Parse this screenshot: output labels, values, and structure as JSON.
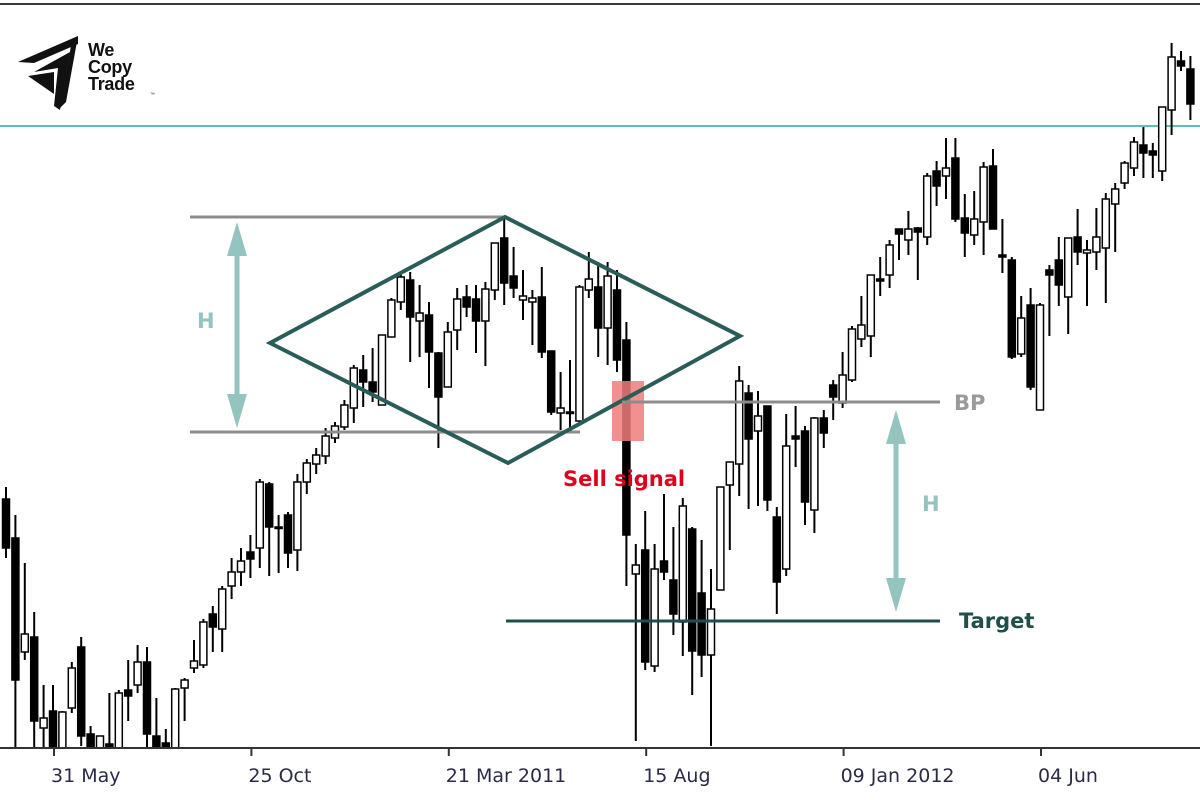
{
  "brand": {
    "line1": "We",
    "line2": "Copy",
    "line3": "Trade",
    "tm": "™"
  },
  "annotations": {
    "height_label_left": "H",
    "height_label_right": "H",
    "breakout_label": "BP",
    "sell_label": "Sell signal",
    "target_label": "Target"
  },
  "colors": {
    "pattern": "#2a5d58",
    "resistance": "#5fbfb5",
    "range_lines": "#8c8c8c",
    "height_arrow": "#93c4bf",
    "sell_text": "#e0001b",
    "sell_zone": "#f07b7b",
    "target": "#1f4f4b",
    "bull_body": "#ffffff",
    "bear_body": "#000000"
  },
  "chart_data": {
    "type": "candlestick",
    "title": "",
    "xlabel": "",
    "ylabel": "",
    "grid": false,
    "y_axis_labels_shown": false,
    "ylim": [
      252,
      1000
    ],
    "x_ticks": [
      {
        "label": "31 May",
        "date": "2010-05-31"
      },
      {
        "label": "25 Oct",
        "date": "2010-10-25"
      },
      {
        "label": "21 Mar 2011",
        "date": "2011-03-21"
      },
      {
        "label": "15 Aug",
        "date": "2011-08-15"
      },
      {
        "label": "09 Jan 2012",
        "date": "2012-01-09"
      },
      {
        "label": "04 Jun",
        "date": "2012-06-04"
      }
    ],
    "candle_fields": [
      "date",
      "open",
      "high",
      "low",
      "close"
    ],
    "candles": [
      [
        "2010-04-26",
        501,
        513,
        442,
        452
      ],
      [
        "2010-05-03",
        462,
        485,
        251,
        320
      ],
      [
        "2010-05-10",
        348,
        437,
        340,
        366
      ],
      [
        "2010-05-17",
        363,
        388,
        251,
        279
      ],
      [
        "2010-05-24",
        272,
        315,
        251,
        282
      ],
      [
        "2010-05-31",
        289,
        315,
        246,
        251
      ],
      [
        "2010-06-07",
        251,
        289,
        251,
        288
      ],
      [
        "2010-06-14",
        292,
        338,
        287,
        332
      ],
      [
        "2010-06-21",
        353,
        363,
        254,
        264
      ],
      [
        "2010-06-28",
        266,
        274,
        251,
        251
      ],
      [
        "2010-07-05",
        251,
        264,
        251,
        264
      ],
      [
        "2010-07-12",
        256,
        307,
        251,
        251
      ],
      [
        "2010-07-19",
        251,
        310,
        251,
        307
      ],
      [
        "2010-07-26",
        310,
        340,
        279,
        304
      ],
      [
        "2010-08-02",
        315,
        355,
        307,
        338
      ],
      [
        "2010-08-09",
        338,
        353,
        251,
        266
      ],
      [
        "2010-08-16",
        264,
        302,
        251,
        251
      ],
      [
        "2010-08-23",
        257,
        271,
        251,
        251
      ],
      [
        "2010-08-30",
        251,
        312,
        251,
        311
      ],
      [
        "2010-09-06",
        312,
        322,
        279,
        320
      ],
      [
        "2010-09-13",
        332,
        360,
        327,
        339
      ],
      [
        "2010-09-20",
        335,
        381,
        332,
        378
      ],
      [
        "2010-09-27",
        386,
        394,
        348,
        373
      ],
      [
        "2010-10-04",
        371,
        414,
        348,
        411
      ],
      [
        "2010-10-11",
        414,
        442,
        401,
        428
      ],
      [
        "2010-10-18",
        428,
        452,
        414,
        439
      ],
      [
        "2010-10-25",
        448,
        465,
        422,
        441
      ],
      [
        "2010-11-01",
        452,
        521,
        432,
        518
      ],
      [
        "2010-11-08",
        516,
        518,
        424,
        473
      ],
      [
        "2010-11-15",
        473,
        485,
        427,
        472
      ],
      [
        "2010-11-22",
        485,
        488,
        432,
        447
      ],
      [
        "2010-11-29",
        450,
        526,
        429,
        518
      ],
      [
        "2010-12-06",
        518,
        541,
        506,
        537
      ],
      [
        "2010-12-13",
        536,
        552,
        526,
        545
      ],
      [
        "2010-12-20",
        544,
        572,
        536,
        564
      ],
      [
        "2010-12-27",
        562,
        578,
        557,
        574
      ],
      [
        "2011-01-03",
        573,
        600,
        570,
        595
      ],
      [
        "2011-01-10",
        592,
        635,
        577,
        632
      ],
      [
        "2011-01-17",
        630,
        645,
        593,
        618
      ],
      [
        "2011-01-24",
        618,
        652,
        598,
        608
      ],
      [
        "2011-01-31",
        595,
        665,
        595,
        665
      ],
      [
        "2011-02-07",
        663,
        702,
        663,
        700
      ],
      [
        "2011-02-14",
        698,
        728,
        690,
        723
      ],
      [
        "2011-02-21",
        720,
        728,
        638,
        683
      ],
      [
        "2011-02-28",
        679,
        715,
        643,
        687
      ],
      [
        "2011-03-07",
        685,
        698,
        612,
        648
      ],
      [
        "2011-03-14",
        647,
        648,
        552,
        603
      ],
      [
        "2011-03-21",
        613,
        678,
        613,
        668
      ],
      [
        "2011-03-28",
        670,
        712,
        650,
        701
      ],
      [
        "2011-04-04",
        703,
        715,
        683,
        693
      ],
      [
        "2011-04-11",
        701,
        715,
        647,
        679
      ],
      [
        "2011-04-18",
        679,
        718,
        634,
        711
      ],
      [
        "2011-04-25",
        710,
        757,
        700,
        757
      ],
      [
        "2011-05-02",
        762,
        783,
        695,
        717
      ],
      [
        "2011-05-09",
        724,
        753,
        702,
        712
      ],
      [
        "2011-05-16",
        700,
        730,
        680,
        704
      ],
      [
        "2011-05-23",
        698,
        710,
        655,
        702
      ],
      [
        "2011-05-30",
        703,
        733,
        642,
        648
      ],
      [
        "2011-06-06",
        649,
        649,
        585,
        588
      ],
      [
        "2011-06-13",
        587,
        628,
        570,
        592
      ],
      [
        "2011-06-20",
        588,
        640,
        568,
        587
      ],
      [
        "2011-06-27",
        579,
        715,
        578,
        713
      ],
      [
        "2011-07-04",
        710,
        748,
        702,
        721
      ],
      [
        "2011-07-11",
        713,
        738,
        643,
        672
      ],
      [
        "2011-07-18",
        672,
        738,
        635,
        724
      ],
      [
        "2011-07-25",
        710,
        730,
        628,
        640
      ],
      [
        "2011-08-01",
        660,
        678,
        414,
        465
      ],
      [
        "2011-08-08",
        426,
        456,
        259,
        435
      ],
      [
        "2011-08-15",
        450,
        489,
        330,
        338
      ],
      [
        "2011-08-22",
        334,
        456,
        328,
        431
      ],
      [
        "2011-08-29",
        439,
        506,
        420,
        428
      ],
      [
        "2011-09-05",
        420,
        473,
        365,
        386
      ],
      [
        "2011-09-12",
        378,
        502,
        344,
        494
      ],
      [
        "2011-09-19",
        471,
        473,
        305,
        349
      ],
      [
        "2011-09-26",
        407,
        460,
        323,
        345
      ],
      [
        "2011-10-03",
        345,
        431,
        254,
        391
      ],
      [
        "2011-10-10",
        410,
        513,
        410,
        513
      ],
      [
        "2011-10-17",
        515,
        538,
        450,
        538
      ],
      [
        "2011-10-24",
        536,
        634,
        504,
        619
      ],
      [
        "2011-10-31",
        607,
        615,
        491,
        561
      ],
      [
        "2011-11-07",
        569,
        609,
        494,
        584
      ],
      [
        "2011-11-14",
        594,
        594,
        489,
        500
      ],
      [
        "2011-11-21",
        483,
        493,
        386,
        418
      ],
      [
        "2011-11-28",
        431,
        586,
        424,
        554
      ],
      [
        "2011-12-05",
        564,
        594,
        533,
        561
      ],
      [
        "2011-12-12",
        569,
        574,
        475,
        498
      ],
      [
        "2011-12-19",
        490,
        583,
        467,
        582
      ],
      [
        "2011-12-26",
        582,
        590,
        552,
        567
      ],
      [
        "2012-01-02",
        615,
        620,
        580,
        603
      ],
      [
        "2012-01-09",
        597,
        648,
        592,
        625
      ],
      [
        "2012-01-16",
        620,
        674,
        618,
        671
      ],
      [
        "2012-01-23",
        661,
        704,
        653,
        675
      ],
      [
        "2012-01-30",
        664,
        725,
        643,
        725
      ],
      [
        "2012-02-06",
        721,
        743,
        704,
        719
      ],
      [
        "2012-02-13",
        725,
        760,
        712,
        755
      ],
      [
        "2012-02-20",
        771,
        771,
        740,
        766
      ],
      [
        "2012-02-27",
        760,
        789,
        745,
        771
      ],
      [
        "2012-03-05",
        772,
        773,
        720,
        768
      ],
      [
        "2012-03-12",
        763,
        827,
        755,
        824
      ],
      [
        "2012-03-19",
        829,
        839,
        794,
        814
      ],
      [
        "2012-03-26",
        824,
        862,
        801,
        832
      ],
      [
        "2012-04-02",
        842,
        862,
        778,
        781
      ],
      [
        "2012-04-09",
        782,
        806,
        743,
        767
      ],
      [
        "2012-04-16",
        765,
        809,
        755,
        781
      ],
      [
        "2012-04-23",
        778,
        838,
        745,
        833
      ],
      [
        "2012-04-30",
        834,
        851,
        771,
        771
      ],
      [
        "2012-05-07",
        745,
        781,
        727,
        743
      ],
      [
        "2012-05-14",
        740,
        743,
        641,
        643
      ],
      [
        "2012-05-21",
        646,
        704,
        643,
        682
      ],
      [
        "2012-05-28",
        695,
        712,
        610,
        613
      ],
      [
        "2012-06-04",
        590,
        697,
        590,
        695
      ],
      [
        "2012-06-11",
        730,
        735,
        664,
        725
      ],
      [
        "2012-06-18",
        740,
        763,
        694,
        715
      ],
      [
        "2012-06-25",
        703,
        762,
        666,
        762
      ],
      [
        "2012-07-02",
        763,
        791,
        735,
        748
      ],
      [
        "2012-07-09",
        747,
        760,
        694,
        750
      ],
      [
        "2012-07-16",
        748,
        792,
        730,
        763
      ],
      [
        "2012-07-23",
        752,
        807,
        697,
        801
      ],
      [
        "2012-07-30",
        796,
        817,
        748,
        811
      ],
      [
        "2012-08-06",
        817,
        839,
        811,
        837
      ],
      [
        "2012-08-13",
        832,
        863,
        824,
        858
      ],
      [
        "2012-08-20",
        855,
        873,
        822,
        847
      ],
      [
        "2012-08-27",
        849,
        857,
        822,
        845
      ],
      [
        "2012-09-03",
        829,
        893,
        819,
        893
      ],
      [
        "2012-09-10",
        890,
        957,
        865,
        943
      ],
      [
        "2012-09-17",
        939,
        949,
        929,
        934
      ],
      [
        "2012-09-24",
        931,
        944,
        880,
        896
      ]
    ]
  }
}
